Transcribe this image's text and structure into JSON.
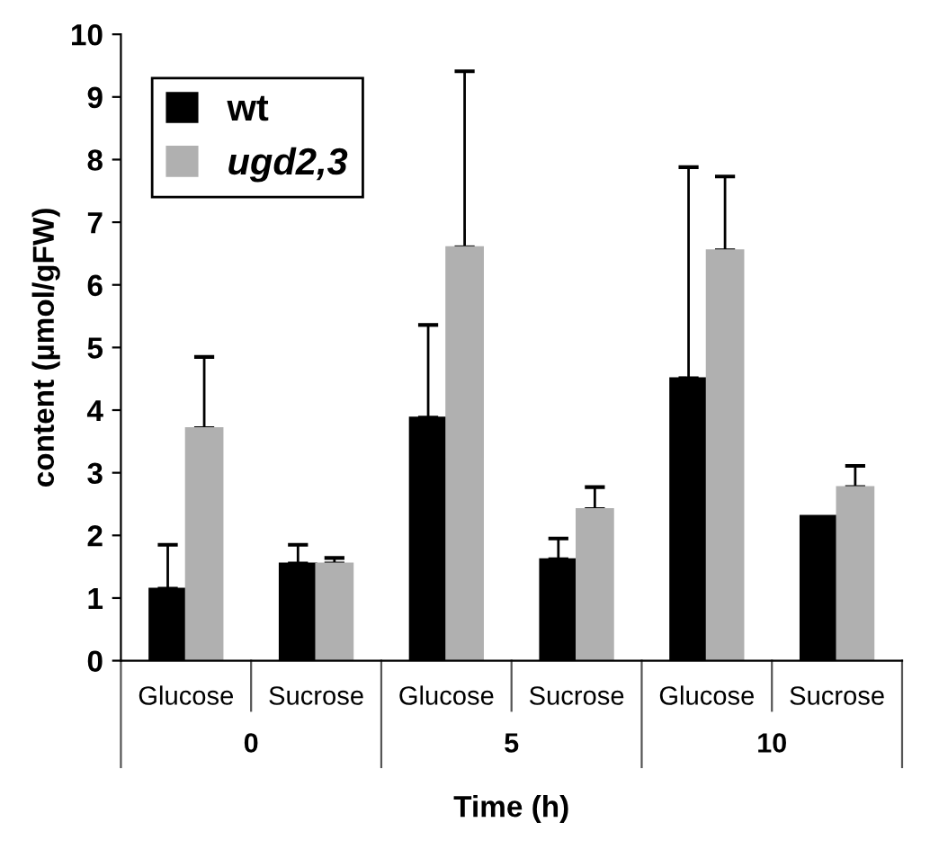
{
  "chart_data": {
    "type": "bar",
    "xlabel": "Time (h)",
    "ylabel": "content (µmol/gFW)",
    "categories": [
      "Glucose",
      "Sucrose",
      "Glucose",
      "Sucrose",
      "Glucose",
      "Sucrose"
    ],
    "series": [
      {
        "name": "wt",
        "color": "#000000",
        "values": [
          1.15,
          1.55,
          3.88,
          1.62,
          4.51,
          2.31
        ],
        "errors": [
          [
            1.15,
            1.85
          ],
          [
            1.55,
            1.85
          ],
          [
            3.88,
            5.36
          ],
          [
            1.62,
            1.95
          ],
          [
            4.51,
            7.88
          ],
          null
        ]
      },
      {
        "name": "ugd2,3",
        "color": "#b0b0b0",
        "values": [
          3.71,
          1.55,
          6.6,
          2.42,
          6.55,
          2.77
        ],
        "errors": [
          [
            3.71,
            4.85
          ],
          [
            1.55,
            1.64
          ],
          [
            6.6,
            9.41
          ],
          [
            2.42,
            2.77
          ],
          [
            6.55,
            7.73
          ],
          [
            2.77,
            3.11
          ]
        ]
      }
    ],
    "annotations": [
      "0",
      "5",
      "10"
    ],
    "ylim": [
      0,
      10
    ],
    "yticks": [
      0,
      1,
      2,
      3,
      4,
      5,
      6,
      7,
      8,
      9,
      10
    ],
    "grid": false,
    "legend": "top left"
  }
}
